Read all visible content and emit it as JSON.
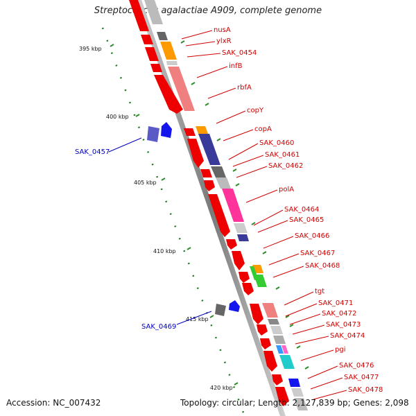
{
  "title": "Streptococcus agalactiae A909, complete genome",
  "footer": {
    "accession": "Accession: NC_007432",
    "summary": "Topology: circular; Length: 2,127,839 bp; Genes: 2,098"
  },
  "ruler": {
    "ticks": [
      {
        "label": "395 kbp"
      },
      {
        "label": "400 kbp"
      },
      {
        "label": "405 kbp"
      },
      {
        "label": "410 kbp"
      },
      {
        "label": "415 kbp"
      },
      {
        "label": "420 kbp"
      }
    ]
  },
  "genes_forward": [
    {
      "label": "nusA"
    },
    {
      "label": "ylxR"
    },
    {
      "label": "SAK_0454"
    },
    {
      "label": "infB"
    },
    {
      "label": "rbfA"
    },
    {
      "label": "copY"
    },
    {
      "label": "copA"
    },
    {
      "label": "SAK_0460"
    },
    {
      "label": "SAK_0461"
    },
    {
      "label": "SAK_0462"
    },
    {
      "label": "polA"
    },
    {
      "label": "SAK_0464"
    },
    {
      "label": "SAK_0465"
    },
    {
      "label": "SAK_0466"
    },
    {
      "label": "SAK_0467"
    },
    {
      "label": "SAK_0468"
    },
    {
      "label": "tgt"
    },
    {
      "label": "SAK_0471"
    },
    {
      "label": "SAK_0472"
    },
    {
      "label": "SAK_0473"
    },
    {
      "label": "SAK_0474"
    },
    {
      "label": "pgi"
    },
    {
      "label": "SAK_0476"
    },
    {
      "label": "SAK_0477"
    },
    {
      "label": "SAK_0478"
    }
  ],
  "genes_reverse": [
    {
      "label": "SAK_0457"
    },
    {
      "label": "SAK_0469"
    }
  ],
  "colors": {
    "cds": "#ee0000",
    "forward_label": "#d00000",
    "reverse_label": "#0000c0",
    "ruler": "#2e8b2e",
    "backbone": "#888888"
  }
}
